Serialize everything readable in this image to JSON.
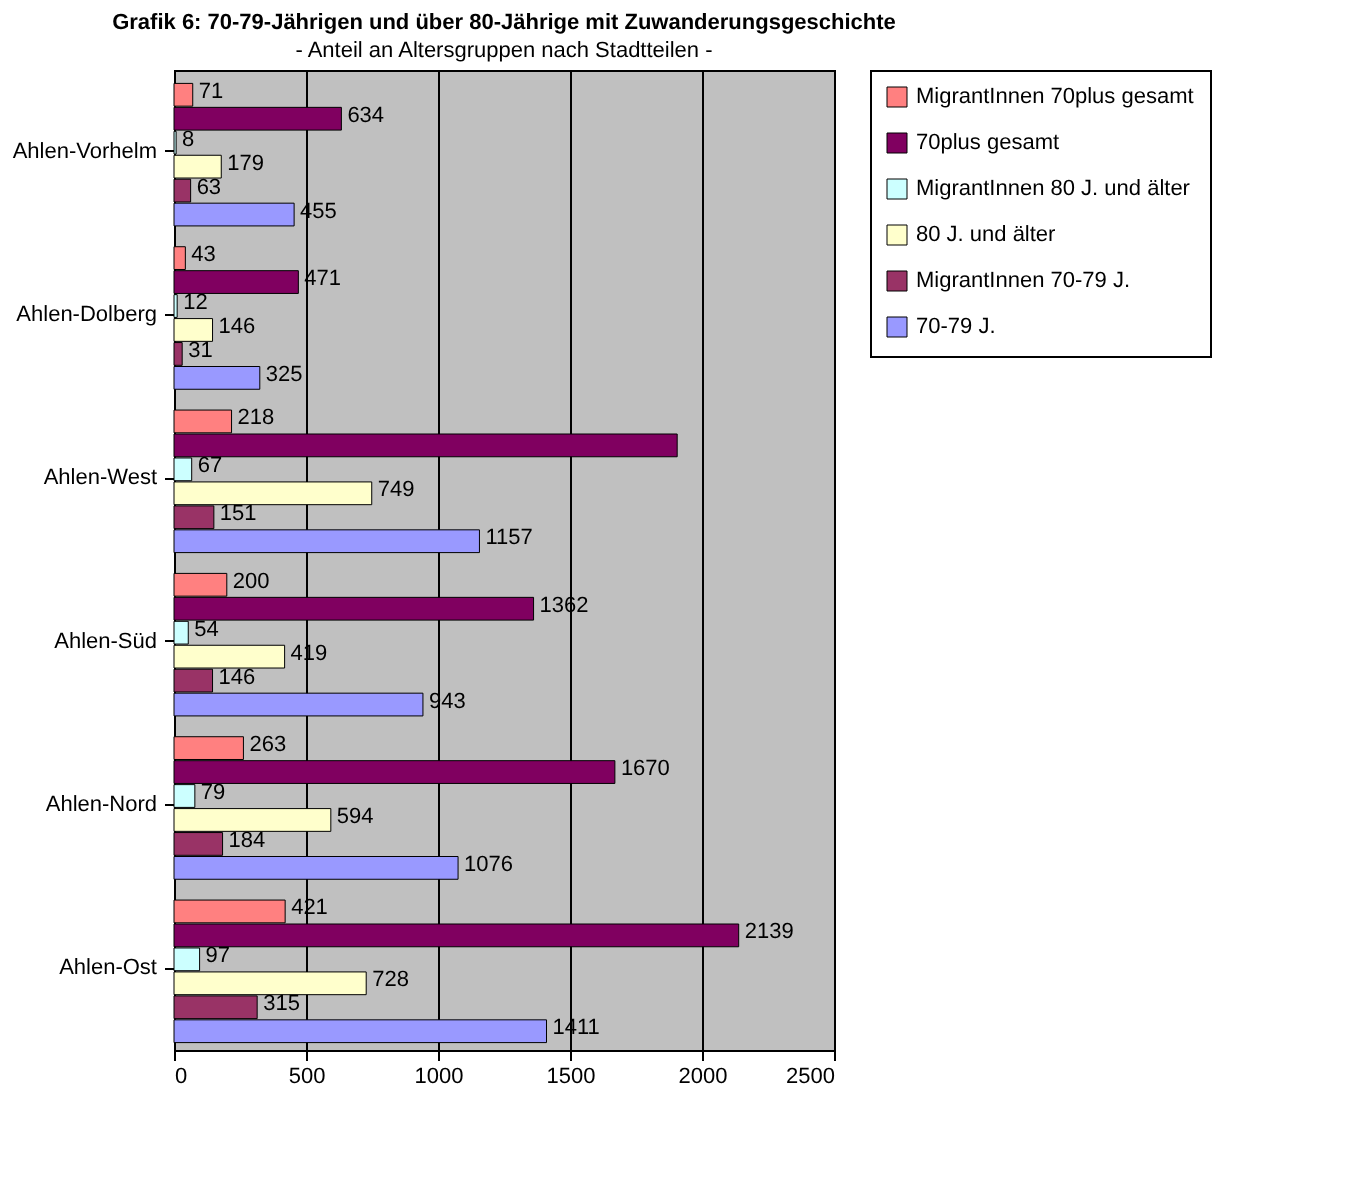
{
  "chart_data": {
    "type": "bar",
    "orientation": "horizontal",
    "title": "Grafik 6: 70-79-Jährigen und über 80-Jährige mit Zuwanderungsgeschichte",
    "subtitle": "- Anteil an Altersgruppen nach Stadtteilen -",
    "categories": [
      "Ahlen-Vorhelm",
      "Ahlen-Dolberg",
      "Ahlen-West",
      "Ahlen-Süd",
      "Ahlen-Nord",
      "Ahlen-Ost"
    ],
    "series": [
      {
        "name": "MigrantInnen 70plus gesamt",
        "color": "#ff8080",
        "values": [
          71,
          43,
          218,
          200,
          263,
          421
        ],
        "value_labels": [
          "71",
          "43",
          "218",
          "200",
          "263",
          "421"
        ]
      },
      {
        "name": "70plus gesamt",
        "color": "#800060",
        "values": [
          634,
          471,
          1906,
          1362,
          1670,
          2139
        ],
        "value_labels": [
          "634",
          "471",
          null,
          "1362",
          "1670",
          "2139"
        ]
      },
      {
        "name": "MigrantInnen 80 J. und älter",
        "color": "#ccffff",
        "values": [
          8,
          12,
          67,
          54,
          79,
          97
        ],
        "value_labels": [
          "8",
          "12",
          "67",
          "54",
          "79",
          "97"
        ]
      },
      {
        "name": "80 J. und älter",
        "color": "#ffffcc",
        "values": [
          179,
          146,
          749,
          419,
          594,
          728
        ],
        "value_labels": [
          "179",
          "146",
          "749",
          "419",
          "594",
          "728"
        ]
      },
      {
        "name": "MigrantInnen 70-79 J.",
        "color": "#993366",
        "values": [
          63,
          31,
          151,
          146,
          184,
          315
        ],
        "value_labels": [
          "63",
          "31",
          "151",
          "146",
          "184",
          "315"
        ]
      },
      {
        "name": "70-79 J.",
        "color": "#9999ff",
        "values": [
          455,
          325,
          1157,
          943,
          1076,
          1411
        ],
        "value_labels": [
          "455",
          "325",
          "1157",
          "943",
          "1076",
          "1411"
        ]
      }
    ],
    "xlim": [
      0,
      2500
    ],
    "xticks": [
      0,
      500,
      1000,
      1500,
      2000,
      2500
    ],
    "grid": "x",
    "legend": "right"
  }
}
